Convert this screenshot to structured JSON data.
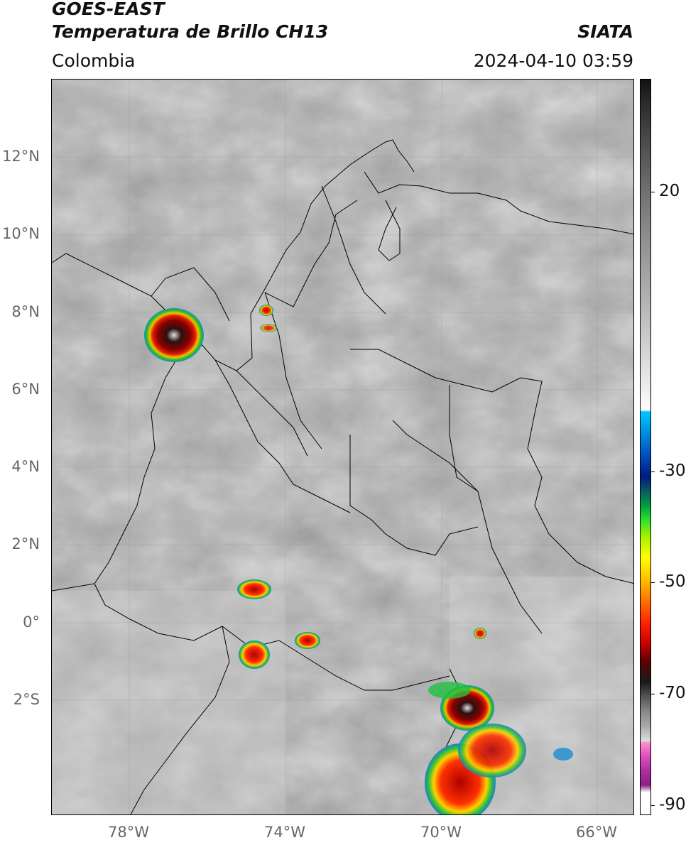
{
  "header": {
    "title_line1": "GOES-EAST",
    "title_line2": "Temperatura de Brillo CH13",
    "brand": "SIATA",
    "region": "Colombia",
    "timestamp": "2024-04-10 03:59"
  },
  "axes": {
    "lat_labels": [
      "12°N",
      "10°N",
      "8°N",
      "6°N",
      "4°N",
      "2°N",
      "0°",
      "2°S"
    ],
    "lon_labels": [
      "78°W",
      "74°W",
      "70°W",
      "66°W"
    ]
  },
  "colorbar": {
    "labels": [
      "20",
      "-30",
      "-50",
      "-70",
      "-90"
    ],
    "unit": ""
  },
  "colors": {
    "background_gray": "#7a7a7a",
    "border_line": "#000000",
    "grid_line": "#9a9a9a"
  }
}
